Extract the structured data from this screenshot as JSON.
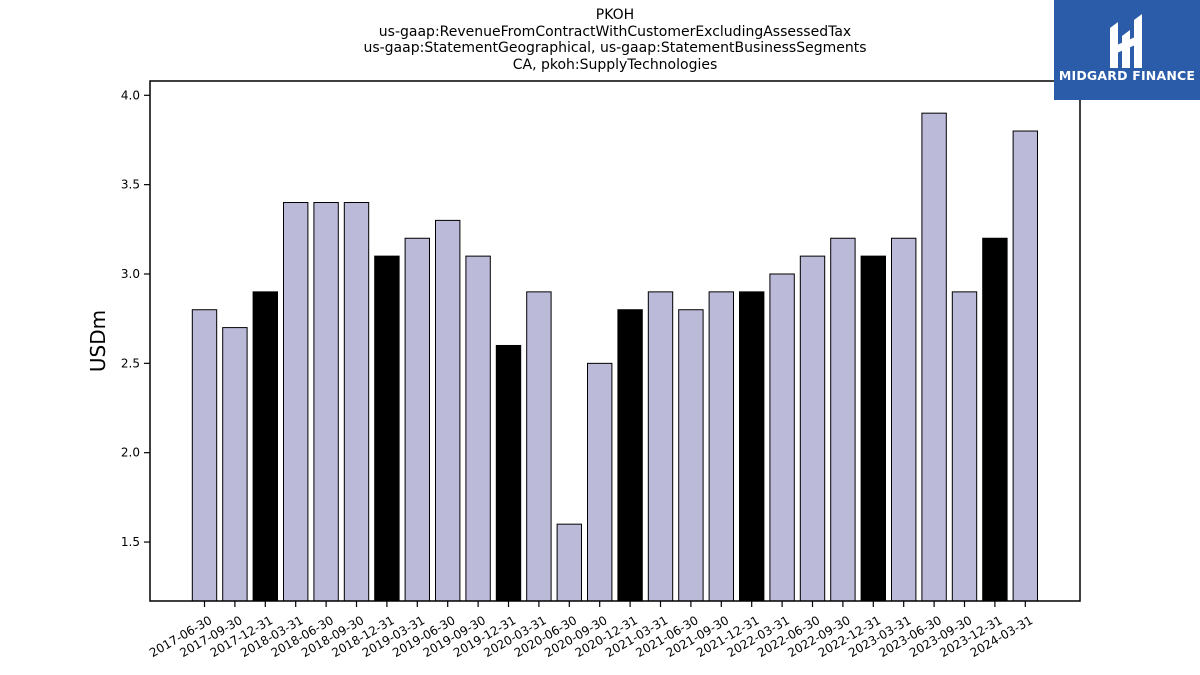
{
  "title_lines": [
    "PKOH",
    "us-gaap:RevenueFromContractWithCustomerExcludingAssessedTax",
    "us-gaap:StatementGeographical, us-gaap:StatementBusinessSegments",
    "CA, pkoh:SupplyTechnologies"
  ],
  "logo": {
    "text": "MIDGARD FINANCE",
    "bg_color": "#2a5caa",
    "icon": "midgard-logo-icon"
  },
  "colors": {
    "quarter": "#bcbad9",
    "year_end": "#000000"
  },
  "chart_data": {
    "type": "bar",
    "title": "PKOH",
    "ylabel": "USDm",
    "xlabel": "",
    "ylim": [
      1.17,
      4.08
    ],
    "yticks": [
      1.5,
      2.0,
      2.5,
      3.0,
      3.5,
      4.0
    ],
    "ytick_labels": [
      "1.5",
      "2.0",
      "2.5",
      "3.0",
      "3.5",
      "4.0"
    ],
    "grid": false,
    "categories": [
      "2017-06-30",
      "2017-09-30",
      "2017-12-31",
      "2018-03-31",
      "2018-06-30",
      "2018-09-30",
      "2018-12-31",
      "2019-03-31",
      "2019-06-30",
      "2019-09-30",
      "2019-12-31",
      "2020-03-31",
      "2020-06-30",
      "2020-09-30",
      "2020-12-31",
      "2021-03-31",
      "2021-06-30",
      "2021-09-30",
      "2021-12-31",
      "2022-03-31",
      "2022-06-30",
      "2022-09-30",
      "2022-12-31",
      "2023-03-31",
      "2023-06-30",
      "2023-09-30",
      "2023-12-31",
      "2024-03-31"
    ],
    "values": [
      2.8,
      2.7,
      2.9,
      3.4,
      3.4,
      3.4,
      3.1,
      3.2,
      3.3,
      3.1,
      2.6,
      2.9,
      1.6,
      2.5,
      2.8,
      2.9,
      2.8,
      2.9,
      2.9,
      3.0,
      3.1,
      3.2,
      3.1,
      3.2,
      3.9,
      2.9,
      3.2,
      3.8
    ],
    "year_end": [
      false,
      false,
      true,
      false,
      false,
      false,
      true,
      false,
      false,
      false,
      true,
      false,
      false,
      false,
      true,
      false,
      false,
      false,
      true,
      false,
      false,
      false,
      true,
      false,
      false,
      false,
      true,
      false
    ]
  }
}
